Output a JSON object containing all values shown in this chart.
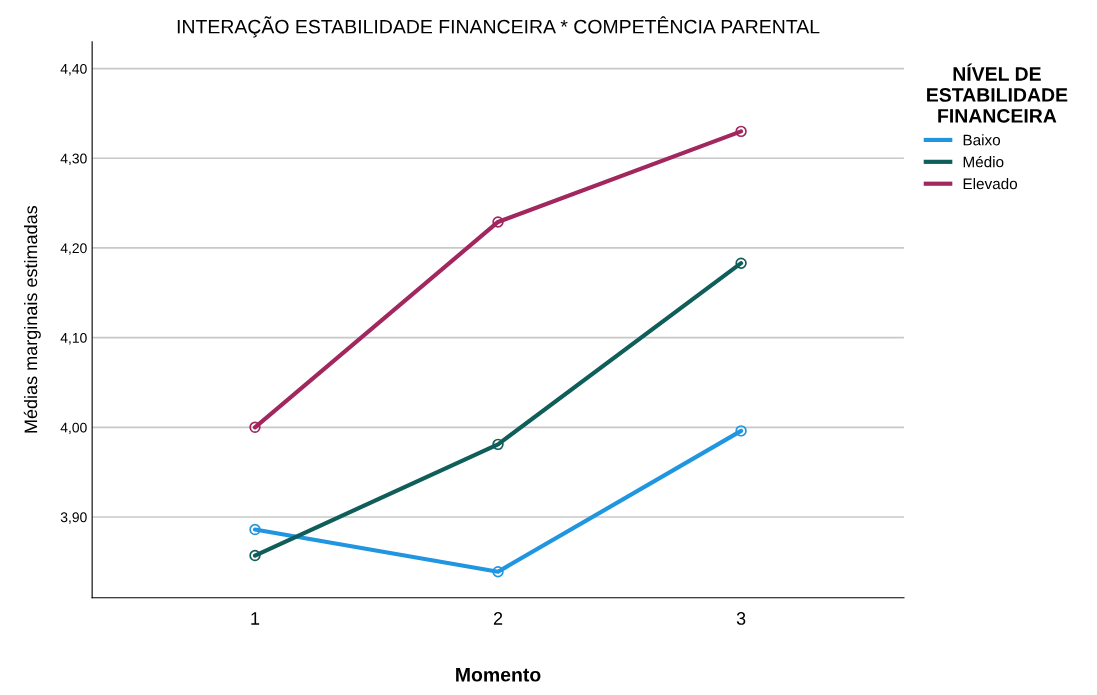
{
  "chart_data": {
    "type": "line",
    "title": "INTERAÇÃO ESTABILIDADE FINANCEIRA * COMPETÊNCIA PARENTAL",
    "xlabel": "Momento",
    "ylabel": "Médias marginais estimadas",
    "legend_title": "NÍVEL DE\nESTABILIDADE\nFINANCEIRA",
    "categories": [
      "1",
      "2",
      "3"
    ],
    "series": [
      {
        "name": "Baixo",
        "color": "#2196e0",
        "values": [
          3.886,
          3.839,
          3.996
        ]
      },
      {
        "name": "Médio",
        "color": "#0f5e5a",
        "values": [
          3.857,
          3.981,
          4.183
        ]
      },
      {
        "name": "Elevado",
        "color": "#a1275e",
        "values": [
          4.0,
          4.229,
          4.33
        ]
      }
    ],
    "ylim": [
      3.81,
      4.43
    ],
    "yticks": [
      {
        "value": 3.9,
        "label": "3,90"
      },
      {
        "value": 4.0,
        "label": "4,00"
      },
      {
        "value": 4.1,
        "label": "4,10"
      },
      {
        "value": 4.2,
        "label": "4,20"
      },
      {
        "value": 4.3,
        "label": "4,30"
      },
      {
        "value": 4.4,
        "label": "4,40"
      }
    ],
    "grid": "y",
    "legend": "top right",
    "marker": "circle",
    "line_style": "solid"
  }
}
